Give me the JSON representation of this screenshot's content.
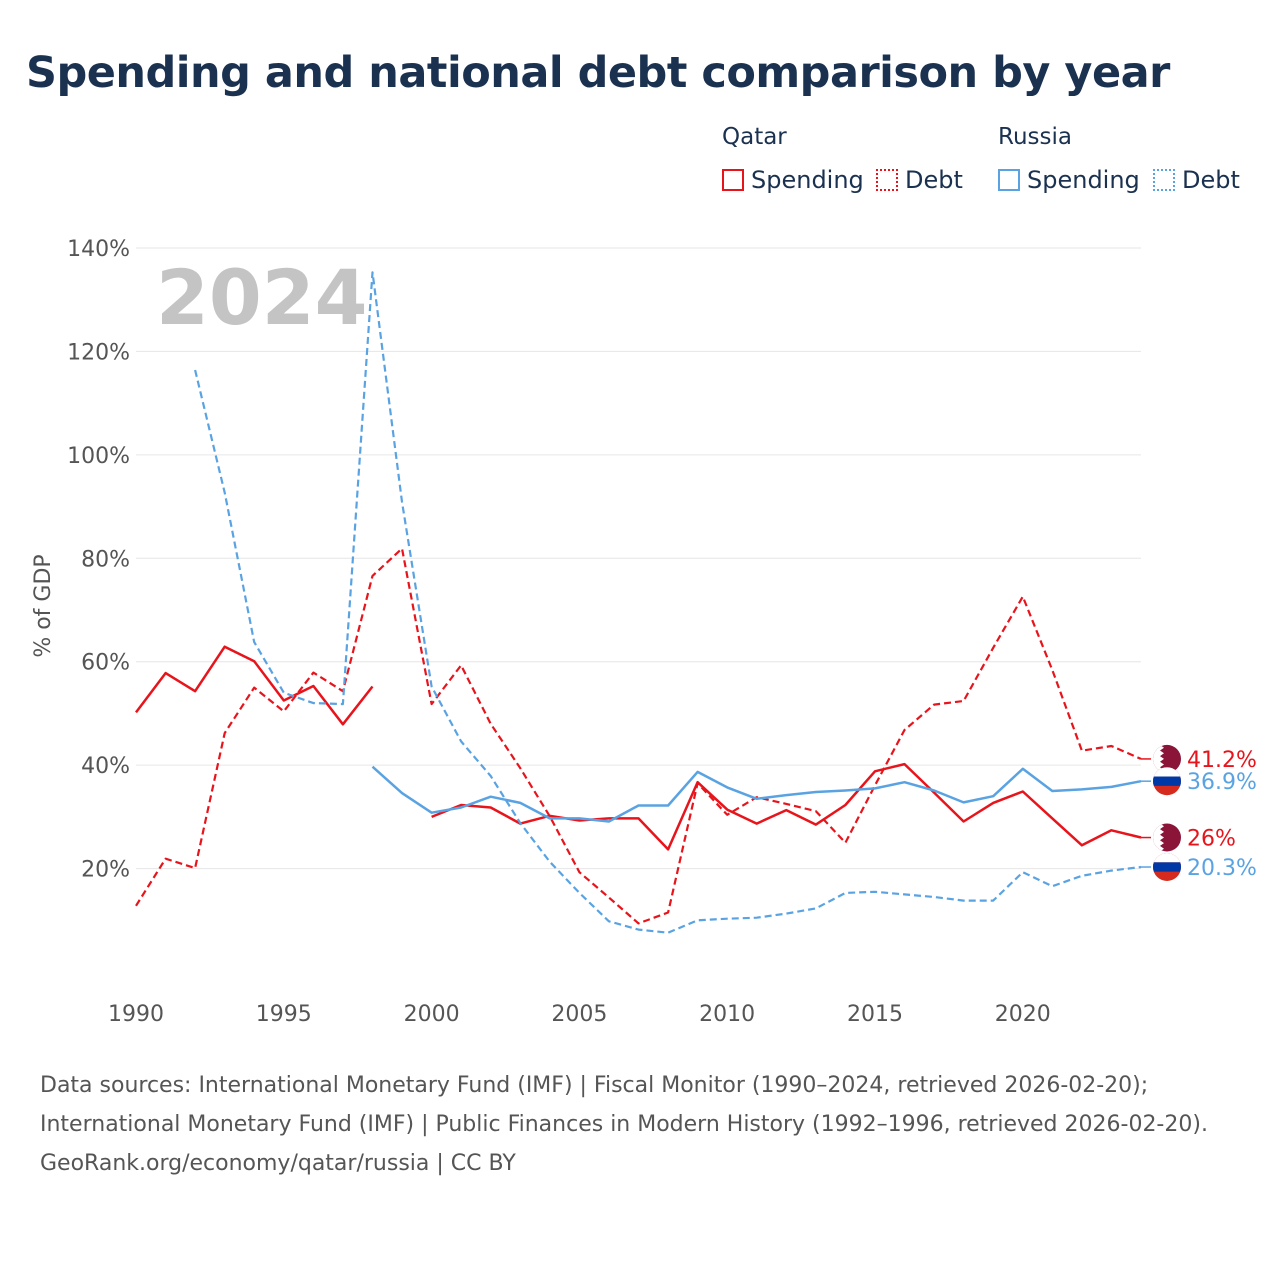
{
  "title": "Spending and national debt comparison by year",
  "legend": {
    "groups": [
      {
        "name": "Qatar",
        "color": "#e8141c",
        "items": [
          {
            "label": "Spending",
            "style": "solid"
          },
          {
            "label": "Debt",
            "style": "dotted"
          }
        ]
      },
      {
        "name": "Russia",
        "color": "#5aa3e2",
        "items": [
          {
            "label": "Spending",
            "style": "solid"
          },
          {
            "label": "Debt",
            "style": "dotted"
          }
        ]
      }
    ]
  },
  "chart_data": {
    "type": "line",
    "title": "Spending and national debt comparison by year",
    "ylabel": "% of GDP",
    "xlabel": "",
    "year_watermark": "2024",
    "xlim": [
      1990,
      2024
    ],
    "ylim": [
      0,
      140
    ],
    "x_ticks": [
      1990,
      1995,
      2000,
      2005,
      2010,
      2015,
      2020
    ],
    "y_ticks": [
      20,
      40,
      60,
      80,
      100,
      120,
      140
    ],
    "y_tick_labels": [
      "20%",
      "40%",
      "60%",
      "80%",
      "100%",
      "120%",
      "140%"
    ],
    "series": [
      {
        "name": "Qatar Spending",
        "country": "Qatar",
        "color": "#e8141c",
        "dash": "solid",
        "end_label": "26%",
        "points": [
          [
            1990,
            50.2
          ],
          [
            1991,
            57.8
          ],
          [
            1992,
            54.3
          ],
          [
            1993,
            62.9
          ],
          [
            1994,
            60.1
          ],
          [
            1995,
            52.5
          ],
          [
            1996,
            55.3
          ],
          [
            1997,
            47.9
          ],
          [
            1998,
            55.2
          ],
          [
            2000,
            30
          ],
          [
            2001,
            32.3
          ],
          [
            2002,
            31.8
          ],
          [
            2003,
            28.7
          ],
          [
            2004,
            30.2
          ],
          [
            2005,
            29.3
          ],
          [
            2006,
            29.7
          ],
          [
            2007,
            29.7
          ],
          [
            2008,
            23.7
          ],
          [
            2009,
            36.7
          ],
          [
            2010,
            31.4
          ],
          [
            2011,
            28.7
          ],
          [
            2012,
            31.3
          ],
          [
            2013,
            28.5
          ],
          [
            2014,
            32.3
          ],
          [
            2015,
            38.8
          ],
          [
            2016,
            40.2
          ],
          [
            2017,
            34.7
          ],
          [
            2018,
            29.1
          ],
          [
            2019,
            32.7
          ],
          [
            2020,
            34.9
          ],
          [
            2021,
            29.7
          ],
          [
            2022,
            24.5
          ],
          [
            2023,
            27.4
          ],
          [
            2024,
            26
          ]
        ]
      },
      {
        "name": "Qatar Debt",
        "country": "Qatar",
        "color": "#e8141c",
        "dash": "dashed",
        "end_label": "41.2%",
        "points": [
          [
            1990,
            12.8
          ],
          [
            1991,
            21.9
          ],
          [
            1992,
            20.1
          ],
          [
            1993,
            46.2
          ],
          [
            1994,
            55
          ],
          [
            1995,
            50.4
          ],
          [
            1996,
            57.9
          ],
          [
            1997,
            54.3
          ],
          [
            1998,
            76.6
          ],
          [
            1999,
            81.9
          ],
          [
            2000,
            51.8
          ],
          [
            2001,
            59.3
          ],
          [
            2002,
            48
          ],
          [
            2003,
            39.4
          ],
          [
            2004,
            30.1
          ],
          [
            2005,
            19.3
          ],
          [
            2006,
            14.4
          ],
          [
            2007,
            9.4
          ],
          [
            2008,
            11.5
          ],
          [
            2009,
            36.5
          ],
          [
            2010,
            30.4
          ],
          [
            2011,
            33.8
          ],
          [
            2012,
            32.5
          ],
          [
            2013,
            31.1
          ],
          [
            2014,
            25
          ],
          [
            2015,
            36.1
          ],
          [
            2016,
            46.8
          ],
          [
            2017,
            51.7
          ],
          [
            2018,
            52.4
          ],
          [
            2019,
            62.7
          ],
          [
            2020,
            72.6
          ],
          [
            2021,
            58.4
          ],
          [
            2022,
            42.8
          ],
          [
            2023,
            43.7
          ],
          [
            2024,
            41.2
          ]
        ]
      },
      {
        "name": "Russia Spending",
        "country": "Russia",
        "color": "#5aa3e2",
        "dash": "solid",
        "end_label": "36.9%",
        "points": [
          [
            1998,
            39.7
          ],
          [
            1999,
            34.6
          ],
          [
            2000,
            30.8
          ],
          [
            2001,
            31.8
          ],
          [
            2002,
            33.9
          ],
          [
            2003,
            32.7
          ],
          [
            2004,
            29.7
          ],
          [
            2005,
            29.7
          ],
          [
            2006,
            29.1
          ],
          [
            2007,
            32.2
          ],
          [
            2008,
            32.2
          ],
          [
            2009,
            38.7
          ],
          [
            2010,
            35.7
          ],
          [
            2011,
            33.5
          ],
          [
            2012,
            34.2
          ],
          [
            2013,
            34.8
          ],
          [
            2014,
            35.1
          ],
          [
            2015,
            35.5
          ],
          [
            2016,
            36.7
          ],
          [
            2017,
            35.1
          ],
          [
            2018,
            32.8
          ],
          [
            2019,
            34
          ],
          [
            2020,
            39.3
          ],
          [
            2021,
            35
          ],
          [
            2022,
            35.3
          ],
          [
            2023,
            35.8
          ],
          [
            2024,
            36.9
          ]
        ]
      },
      {
        "name": "Russia Debt",
        "country": "Russia",
        "color": "#5aa3e2",
        "dash": "dashed",
        "end_label": "20.3%",
        "points": [
          [
            1992,
            116.4
          ],
          [
            1993,
            92.7
          ],
          [
            1994,
            63.8
          ],
          [
            1995,
            54
          ],
          [
            1996,
            52
          ],
          [
            1997,
            51.8
          ],
          [
            1998,
            135.3
          ],
          [
            1999,
            90.9
          ],
          [
            2000,
            55.2
          ],
          [
            2001,
            44.6
          ],
          [
            2002,
            37.9
          ],
          [
            2003,
            28.8
          ],
          [
            2004,
            21.3
          ],
          [
            2005,
            15.3
          ],
          [
            2006,
            9.8
          ],
          [
            2007,
            8.2
          ],
          [
            2008,
            7.6
          ],
          [
            2009,
            10
          ],
          [
            2010,
            10.3
          ],
          [
            2011,
            10.5
          ],
          [
            2012,
            11.3
          ],
          [
            2013,
            12.3
          ],
          [
            2014,
            15.3
          ],
          [
            2015,
            15.5
          ],
          [
            2016,
            15
          ],
          [
            2017,
            14.5
          ],
          [
            2018,
            13.8
          ],
          [
            2019,
            13.8
          ],
          [
            2020,
            19.3
          ],
          [
            2021,
            16.6
          ],
          [
            2022,
            18.6
          ],
          [
            2023,
            19.6
          ],
          [
            2024,
            20.3
          ]
        ]
      }
    ]
  },
  "footer": {
    "sources": [
      "Data sources: International Monetary Fund (IMF) | Fiscal Monitor (1990–2024, retrieved 2026-02-20);",
      "International Monetary Fund (IMF) | Public Finances in Modern History (1992–1996, retrieved 2026-02-20)."
    ],
    "credit": "GeoRank.org/economy/qatar/russia | CC BY"
  }
}
